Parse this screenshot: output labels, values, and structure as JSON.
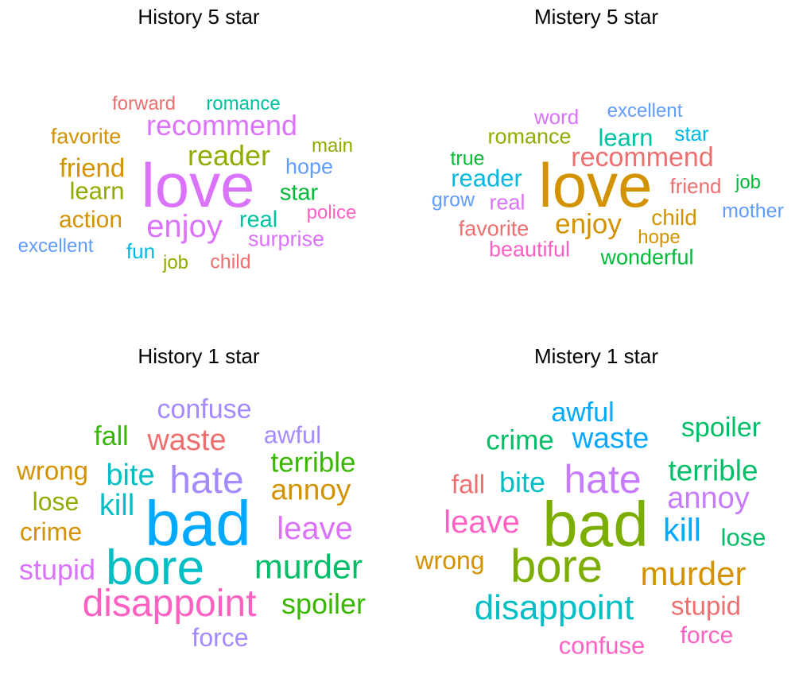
{
  "palette": {
    "red": "#ee6f6f",
    "orange": "#d39200",
    "olive": "#93aa00",
    "green": "#00ba38",
    "teal": "#00c19f",
    "cyan": "#00b9e3",
    "blue": "#619cff",
    "violet": "#a58aff",
    "purple": "#db72fb",
    "pink": "#ff61c3",
    "lime": "#39b600",
    "sky": "#00a9ff",
    "aqua": "#00bfc4",
    "orange2": "#e68613",
    "mint": "#00be67"
  },
  "panels": [
    {
      "id": "h5",
      "title": "History 5 star",
      "words": [
        {
          "text": "love",
          "color": "#db72fb"
        },
        {
          "text": "recommend",
          "color": "#db72fb"
        },
        {
          "text": "reader",
          "color": "#93aa00"
        },
        {
          "text": "enjoy",
          "color": "#db72fb"
        },
        {
          "text": "friend",
          "color": "#d39200"
        },
        {
          "text": "learn",
          "color": "#93aa00"
        },
        {
          "text": "action",
          "color": "#d39200"
        },
        {
          "text": "favorite",
          "color": "#d39200"
        },
        {
          "text": "forward",
          "color": "#ee6f6f"
        },
        {
          "text": "romance",
          "color": "#00c19f"
        },
        {
          "text": "main",
          "color": "#93aa00"
        },
        {
          "text": "hope",
          "color": "#619cff"
        },
        {
          "text": "star",
          "color": "#00ba38"
        },
        {
          "text": "real",
          "color": "#00c19f"
        },
        {
          "text": "police",
          "color": "#ff61c3"
        },
        {
          "text": "surprise",
          "color": "#db72fb"
        },
        {
          "text": "excellent",
          "color": "#619cff"
        },
        {
          "text": "fun",
          "color": "#00b9e3"
        },
        {
          "text": "job",
          "color": "#93aa00"
        },
        {
          "text": "child",
          "color": "#ee6f6f"
        }
      ]
    },
    {
      "id": "m5",
      "title": "Mistery 5 star",
      "words": [
        {
          "text": "love",
          "color": "#d39200"
        },
        {
          "text": "recommend",
          "color": "#ee6f6f"
        },
        {
          "text": "enjoy",
          "color": "#d39200"
        },
        {
          "text": "learn",
          "color": "#00c19f"
        },
        {
          "text": "reader",
          "color": "#00b9e3"
        },
        {
          "text": "word",
          "color": "#db72fb"
        },
        {
          "text": "excellent",
          "color": "#619cff"
        },
        {
          "text": "star",
          "color": "#00b9e3"
        },
        {
          "text": "romance",
          "color": "#93aa00"
        },
        {
          "text": "true",
          "color": "#00ba38"
        },
        {
          "text": "grow",
          "color": "#619cff"
        },
        {
          "text": "real",
          "color": "#db72fb"
        },
        {
          "text": "friend",
          "color": "#ee6f6f"
        },
        {
          "text": "job",
          "color": "#00ba38"
        },
        {
          "text": "child",
          "color": "#d39200"
        },
        {
          "text": "mother",
          "color": "#619cff"
        },
        {
          "text": "hope",
          "color": "#d39200"
        },
        {
          "text": "favorite",
          "color": "#ee6f6f"
        },
        {
          "text": "beautiful",
          "color": "#ff61c3"
        },
        {
          "text": "wonderful",
          "color": "#00ba38"
        }
      ]
    },
    {
      "id": "h1",
      "title": "History 1 star",
      "words": [
        {
          "text": "bad",
          "color": "#00a9ff"
        },
        {
          "text": "bore",
          "color": "#00bfc4"
        },
        {
          "text": "disappoint",
          "color": "#ff61c3"
        },
        {
          "text": "hate",
          "color": "#a58aff"
        },
        {
          "text": "murder",
          "color": "#00be67"
        },
        {
          "text": "confuse",
          "color": "#a58aff"
        },
        {
          "text": "waste",
          "color": "#ee6f6f"
        },
        {
          "text": "fall",
          "color": "#39b600"
        },
        {
          "text": "awful",
          "color": "#a58aff"
        },
        {
          "text": "terrible",
          "color": "#39b600"
        },
        {
          "text": "annoy",
          "color": "#d39200"
        },
        {
          "text": "wrong",
          "color": "#d39200"
        },
        {
          "text": "bite",
          "color": "#00bfc4"
        },
        {
          "text": "lose",
          "color": "#93aa00"
        },
        {
          "text": "kill",
          "color": "#00bfc4"
        },
        {
          "text": "crime",
          "color": "#d39200"
        },
        {
          "text": "leave",
          "color": "#db72fb"
        },
        {
          "text": "stupid",
          "color": "#db72fb"
        },
        {
          "text": "spoiler",
          "color": "#39b600"
        },
        {
          "text": "force",
          "color": "#a58aff"
        }
      ]
    },
    {
      "id": "m1",
      "title": "Mistery 1 star",
      "words": [
        {
          "text": "bad",
          "color": "#7cae00"
        },
        {
          "text": "bore",
          "color": "#7cae00"
        },
        {
          "text": "disappoint",
          "color": "#00bfc4"
        },
        {
          "text": "hate",
          "color": "#c77cff"
        },
        {
          "text": "murder",
          "color": "#d39200"
        },
        {
          "text": "awful",
          "color": "#00a9ff"
        },
        {
          "text": "crime",
          "color": "#00be67"
        },
        {
          "text": "waste",
          "color": "#00a9ff"
        },
        {
          "text": "spoiler",
          "color": "#00be67"
        },
        {
          "text": "terrible",
          "color": "#00be67"
        },
        {
          "text": "fall",
          "color": "#ee6f6f"
        },
        {
          "text": "bite",
          "color": "#00bfc4"
        },
        {
          "text": "annoy",
          "color": "#c77cff"
        },
        {
          "text": "leave",
          "color": "#ff61c3"
        },
        {
          "text": "kill",
          "color": "#00a9ff"
        },
        {
          "text": "lose",
          "color": "#00be67"
        },
        {
          "text": "wrong",
          "color": "#d39200"
        },
        {
          "text": "stupid",
          "color": "#ee6f6f"
        },
        {
          "text": "force",
          "color": "#ff61c3"
        },
        {
          "text": "confuse",
          "color": "#ff61c3"
        }
      ]
    }
  ]
}
